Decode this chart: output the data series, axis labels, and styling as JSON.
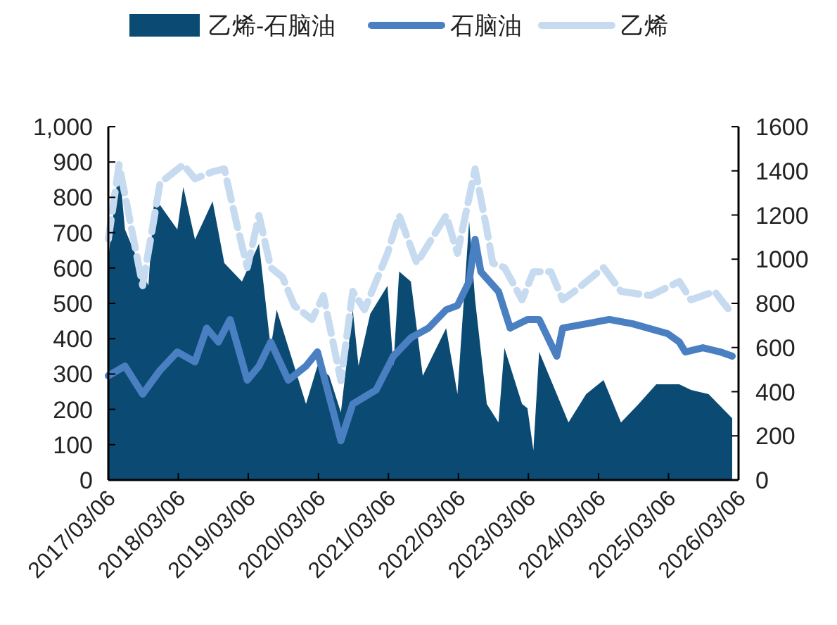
{
  "chart_data": {
    "type": "area",
    "xlim": [
      "2017-03-06",
      "2026-03-06"
    ],
    "xticks": [
      {
        "value": "2017-03-06",
        "label": "2017/03/06"
      },
      {
        "value": "2018-03-06",
        "label": "2018/03/06"
      },
      {
        "value": "2019-03-06",
        "label": "2019/03/06"
      },
      {
        "value": "2020-03-06",
        "label": "2020/03/06"
      },
      {
        "value": "2021-03-06",
        "label": "2021/03/06"
      },
      {
        "value": "2022-03-06",
        "label": "2022/03/06"
      },
      {
        "value": "2023-03-06",
        "label": "2023/03/06"
      },
      {
        "value": "2024-03-06",
        "label": "2024/03/06"
      },
      {
        "value": "2025-03-06",
        "label": "2025/03/06"
      },
      {
        "value": "2026-03-06",
        "label": "2026/03/06"
      }
    ],
    "ylim": [
      0,
      1000
    ],
    "yticks": [
      0,
      100,
      200,
      300,
      400,
      500,
      600,
      700,
      800,
      900,
      {
        "value": 1000,
        "label": "1,000"
      }
    ],
    "y2lim": [
      0,
      1600
    ],
    "y2ticks": [
      0,
      200,
      400,
      600,
      800,
      1000,
      1200,
      1400,
      1600
    ],
    "grid": false,
    "legend": "top",
    "marker": "none",
    "series": [
      {
        "name": "乙烯-石脑油",
        "color": "#0b4a72",
        "x": [
          "2017-03-06",
          "2017-05",
          "2017-06",
          "2017-10",
          "2017-11",
          "2018-03",
          "2018-04",
          "2018-06",
          "2018-09",
          "2018-11",
          "2019-02",
          "2019-05",
          "2019-07",
          "2019-08",
          "2020-01",
          "2020-03",
          "2020-05",
          "2020-07",
          "2020-09",
          "2020-10",
          "2020-12",
          "2021-03",
          "2021-04",
          "2021-05",
          "2021-07",
          "2021-09",
          "2022-01",
          "2022-03",
          "2022-05",
          "2022-06",
          "2022-08",
          "2022-10",
          "2022-11",
          "2023-02",
          "2023-03",
          "2023-04",
          "2023-05",
          "2023-08",
          "2023-10",
          "2024-01",
          "2024-04",
          "2024-07",
          "2024-10",
          "2025-01",
          "2025-05",
          "2025-07",
          "2025-10",
          "2026-02"
        ],
        "values": [
          629,
          892,
          709,
          550,
          801,
          709,
          829,
          681,
          789,
          614,
          562,
          669,
          374,
          482,
          215,
          323,
          295,
          191,
          482,
          323,
          470,
          550,
          323,
          590,
          562,
          295,
          430,
          243,
          733,
          510,
          215,
          163,
          374,
          215,
          203,
          84,
          363,
          243,
          163,
          243,
          283,
          163,
          215,
          271,
          271,
          255,
          243,
          175
        ]
      },
      {
        "name": "石脑油",
        "type": "line",
        "axis": "y2",
        "color": "#4a80c2",
        "line_style": "solid",
        "x": [
          "2017-03-06",
          "2017-06",
          "2017-09",
          "2017-12",
          "2018-03",
          "2018-06",
          "2018-08",
          "2018-10",
          "2018-12",
          "2019-03",
          "2019-05",
          "2019-07",
          "2019-10",
          "2020-01",
          "2020-03",
          "2020-07",
          "2020-09",
          "2021-01",
          "2021-04",
          "2021-07",
          "2021-10",
          "2022-01",
          "2022-03",
          "2022-05",
          "2022-06",
          "2022-07",
          "2022-10",
          "2022-12",
          "2023-03",
          "2023-05",
          "2023-08",
          "2023-09",
          "2024-01",
          "2024-05",
          "2024-09",
          "2025-03",
          "2025-05",
          "2025-06",
          "2025-09",
          "2025-12",
          "2026-02"
        ],
        "values": [
          472,
          516,
          389,
          497,
          580,
          535,
          688,
          625,
          727,
          452,
          516,
          625,
          452,
          516,
          580,
          178,
          344,
          408,
          561,
          644,
          688,
          771,
          790,
          899,
          1090,
          943,
          854,
          688,
          727,
          727,
          561,
          688,
          707,
          727,
          707,
          663,
          625,
          580,
          599,
          580,
          561
        ]
      },
      {
        "name": "乙烯",
        "type": "line",
        "axis": "y2",
        "color": "#c6dbf0",
        "line_style": "dashed",
        "x": [
          "2017-03-06",
          "2017-05",
          "2017-09",
          "2017-12",
          "2018-04",
          "2018-06",
          "2018-09",
          "2018-11",
          "2019-01",
          "2019-03",
          "2019-05",
          "2019-07",
          "2019-09",
          "2019-11",
          "2020-02",
          "2020-04",
          "2020-07",
          "2020-09",
          "2020-11",
          "2021-03",
          "2021-05",
          "2021-08",
          "2021-09",
          "2022-01",
          "2022-03",
          "2022-06",
          "2022-08",
          "2022-09",
          "2022-11",
          "2023-02",
          "2023-04",
          "2023-07",
          "2023-09",
          "2023-11",
          "2024-04",
          "2024-07",
          "2024-12",
          "2025-05",
          "2025-07",
          "2025-11",
          "2026-02"
        ],
        "values": [
          1090,
          1428,
          880,
          1345,
          1428,
          1364,
          1396,
          1409,
          1173,
          962,
          1198,
          962,
          918,
          790,
          727,
          835,
          450,
          854,
          771,
          1026,
          1198,
          982,
          1026,
          1198,
          1026,
          1409,
          1135,
          982,
          962,
          816,
          943,
          943,
          816,
          854,
          962,
          854,
          835,
          899,
          816,
          854,
          752
        ]
      }
    ]
  }
}
